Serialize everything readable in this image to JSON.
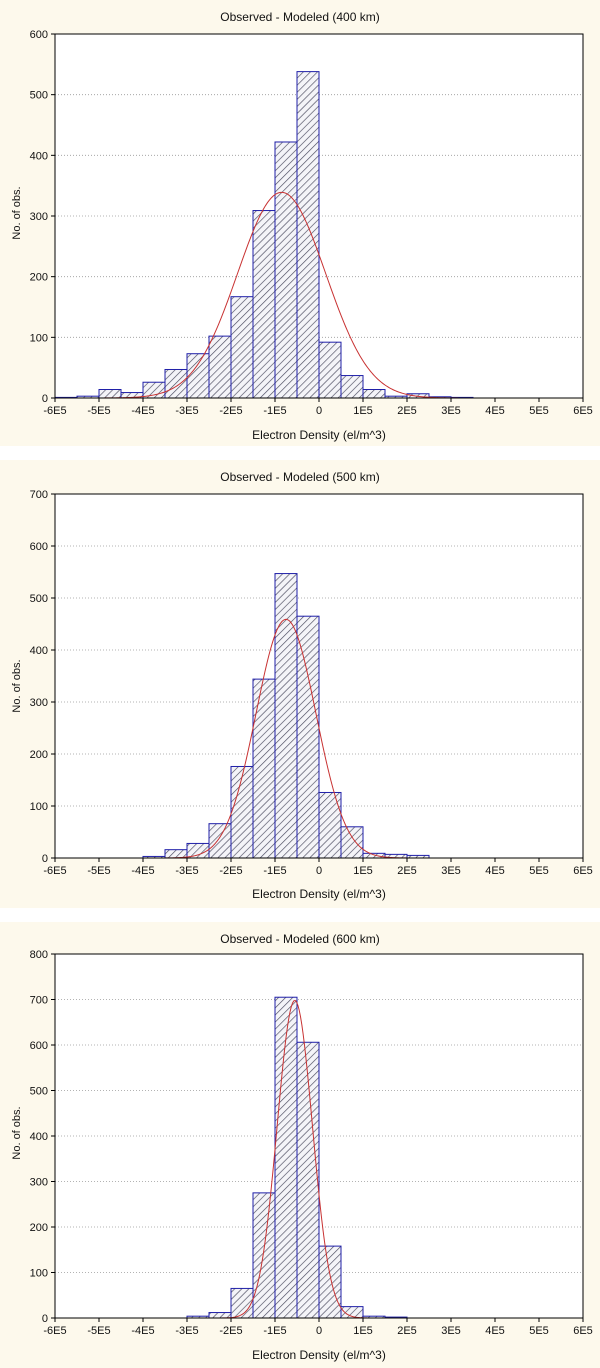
{
  "chart_data": [
    {
      "type": "bar",
      "title": "Observed - Modeled (400 km)",
      "xlabel": "Electron Density (el/m^3)",
      "ylabel": "No. of obs.",
      "xticks": [
        "-6E5",
        "-5E5",
        "-4E5",
        "-3E5",
        "-2E5",
        "-1E5",
        "0",
        "1E5",
        "2E5",
        "3E5",
        "4E5",
        "5E5",
        "6E5"
      ],
      "xlim": [
        -600000,
        600000
      ],
      "ylim": [
        0,
        600
      ],
      "yticks": [
        0,
        100,
        200,
        300,
        400,
        500,
        600
      ],
      "bin_width": 50000,
      "bins": [
        {
          "x": -600000,
          "v": 1
        },
        {
          "x": -550000,
          "v": 3
        },
        {
          "x": -500000,
          "v": 14
        },
        {
          "x": -450000,
          "v": 9
        },
        {
          "x": -400000,
          "v": 26
        },
        {
          "x": -350000,
          "v": 47
        },
        {
          "x": -300000,
          "v": 73
        },
        {
          "x": -250000,
          "v": 102
        },
        {
          "x": -200000,
          "v": 167
        },
        {
          "x": -150000,
          "v": 309
        },
        {
          "x": -100000,
          "v": 422
        },
        {
          "x": -50000,
          "v": 538
        },
        {
          "x": 0,
          "v": 92
        },
        {
          "x": 50000,
          "v": 37
        },
        {
          "x": 100000,
          "v": 14
        },
        {
          "x": 150000,
          "v": 3
        },
        {
          "x": 200000,
          "v": 7
        },
        {
          "x": 250000,
          "v": 2
        },
        {
          "x": 300000,
          "v": 1
        }
      ],
      "normal_fit": {
        "mean": -85000,
        "sd": 100000,
        "peak": 339
      }
    },
    {
      "type": "bar",
      "title": "Observed - Modeled (500 km)",
      "xlabel": "Electron Density (el/m^3)",
      "ylabel": "No. of obs.",
      "xticks": [
        "-6E5",
        "-5E5",
        "-4E5",
        "-3E5",
        "-2E5",
        "-1E5",
        "0",
        "1E5",
        "2E5",
        "3E5",
        "4E5",
        "5E5",
        "6E5"
      ],
      "xlim": [
        -600000,
        600000
      ],
      "ylim": [
        0,
        700
      ],
      "yticks": [
        0,
        100,
        200,
        300,
        400,
        500,
        600,
        700
      ],
      "bin_width": 50000,
      "bins": [
        {
          "x": -400000,
          "v": 3
        },
        {
          "x": -350000,
          "v": 16
        },
        {
          "x": -300000,
          "v": 28
        },
        {
          "x": -250000,
          "v": 66
        },
        {
          "x": -200000,
          "v": 176
        },
        {
          "x": -150000,
          "v": 344
        },
        {
          "x": -100000,
          "v": 547
        },
        {
          "x": -50000,
          "v": 465
        },
        {
          "x": 0,
          "v": 126
        },
        {
          "x": 50000,
          "v": 60
        },
        {
          "x": 100000,
          "v": 9
        },
        {
          "x": 150000,
          "v": 7
        },
        {
          "x": 200000,
          "v": 5
        }
      ],
      "normal_fit": {
        "mean": -75000,
        "sd": 68000,
        "peak": 459
      }
    },
    {
      "type": "bar",
      "title": "Observed - Modeled (600 km)",
      "xlabel": "Electron Density (el/m^3)",
      "ylabel": "No. of obs.",
      "xticks": [
        "-6E5",
        "-5E5",
        "-4E5",
        "-3E5",
        "-2E5",
        "-1E5",
        "0",
        "1E5",
        "2E5",
        "3E5",
        "4E5",
        "5E5",
        "6E5"
      ],
      "xlim": [
        -600000,
        600000
      ],
      "ylim": [
        0,
        800
      ],
      "yticks": [
        0,
        100,
        200,
        300,
        400,
        500,
        600,
        700,
        800
      ],
      "bin_width": 50000,
      "bins": [
        {
          "x": -300000,
          "v": 4
        },
        {
          "x": -250000,
          "v": 12
        },
        {
          "x": -200000,
          "v": 65
        },
        {
          "x": -150000,
          "v": 275
        },
        {
          "x": -100000,
          "v": 705
        },
        {
          "x": -50000,
          "v": 606
        },
        {
          "x": 0,
          "v": 158
        },
        {
          "x": 50000,
          "v": 25
        },
        {
          "x": 100000,
          "v": 4
        },
        {
          "x": 150000,
          "v": 2
        }
      ],
      "normal_fit": {
        "mean": -55000,
        "sd": 40000,
        "peak": 698
      }
    }
  ],
  "colors": {
    "bar_edge": "#1f1fa8",
    "hatch": "#4a4a5e",
    "bar_fill": "#f4f4f8",
    "fit_line": "#c83232",
    "grid": "#9a9a9a",
    "panel_bg": "#fdf9ec"
  }
}
